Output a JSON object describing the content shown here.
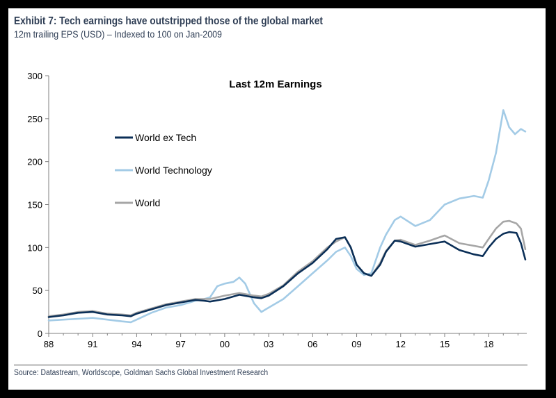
{
  "header": {
    "title": "Exhibit 7: Tech earnings have outstripped those of the global market",
    "subtitle": "12m trailing EPS (USD) – Indexed to 100 on Jan-2009"
  },
  "footer": {
    "source": "Source: Datastream, Worldscope, Goldman Sachs Global Investment Research"
  },
  "chart_data": {
    "type": "line",
    "title": "Last 12m Earnings",
    "xlabel": "",
    "ylabel": "",
    "x_tick_labels": [
      "88",
      "91",
      "94",
      "97",
      "00",
      "03",
      "06",
      "09",
      "12",
      "15",
      "18"
    ],
    "x_tick_years": [
      1988,
      1991,
      1994,
      1997,
      2000,
      2003,
      2006,
      2009,
      2012,
      2015,
      2018
    ],
    "xlim": [
      1988,
      2020.6
    ],
    "ylim": [
      0,
      300
    ],
    "y_ticks": [
      0,
      50,
      100,
      150,
      200,
      250,
      300
    ],
    "grid": false,
    "legend": "left",
    "series": [
      {
        "name": "World ex Tech",
        "color": "#0b2f57",
        "x": [
          1988,
          1989,
          1990,
          1991,
          1992,
          1993,
          1993.6,
          1994,
          1995,
          1996,
          1997,
          1998,
          1998.6,
          1999,
          2000,
          2001,
          2002,
          2002.5,
          2003,
          2004,
          2005,
          2006,
          2007,
          2007.6,
          2008.2,
          2008.6,
          2009,
          2009.5,
          2010,
          2010.6,
          2011,
          2011.6,
          2012,
          2013,
          2014,
          2015,
          2016,
          2017,
          2017.6,
          2018,
          2018.5,
          2019,
          2019.4,
          2019.9,
          2020.2,
          2020.5
        ],
        "y": [
          19,
          21,
          24,
          25,
          22,
          21,
          20,
          23,
          28,
          33,
          36,
          39,
          38,
          37,
          40,
          45,
          42,
          41,
          44,
          55,
          70,
          82,
          98,
          110,
          112,
          100,
          80,
          70,
          67,
          80,
          95,
          108,
          107,
          101,
          104,
          107,
          97,
          92,
          90,
          100,
          110,
          116,
          118,
          117,
          105,
          86
        ]
      },
      {
        "name": "World Technology",
        "color": "#a3cbe6",
        "x": [
          1988,
          1989,
          1990,
          1991,
          1992,
          1993,
          1993.6,
          1994,
          1995,
          1996,
          1997,
          1998,
          1998.6,
          1999,
          1999.5,
          2000,
          2000.6,
          2001,
          2001.4,
          2002,
          2002.5,
          2003,
          2004,
          2005,
          2006,
          2007,
          2007.6,
          2008.2,
          2008.6,
          2009,
          2009.5,
          2010,
          2010.6,
          2011,
          2011.6,
          2012,
          2013,
          2014,
          2015,
          2016,
          2017,
          2017.6,
          2018,
          2018.5,
          2019,
          2019.4,
          2019.8,
          2020.2,
          2020.5
        ],
        "y": [
          15,
          16,
          17,
          18,
          16,
          14,
          13,
          16,
          24,
          30,
          33,
          38,
          40,
          42,
          55,
          58,
          60,
          65,
          58,
          35,
          25,
          30,
          40,
          55,
          70,
          85,
          95,
          100,
          90,
          75,
          68,
          70,
          100,
          115,
          132,
          136,
          125,
          132,
          150,
          157,
          160,
          158,
          178,
          210,
          260,
          240,
          232,
          238,
          235
        ]
      },
      {
        "name": "World",
        "color": "#a6a6a6",
        "x": [
          1988,
          1989,
          1990,
          1991,
          1992,
          1993,
          1993.6,
          1994,
          1995,
          1996,
          1997,
          1998,
          1998.6,
          1999,
          2000,
          2001,
          2002,
          2002.5,
          2003,
          2004,
          2005,
          2006,
          2007,
          2007.6,
          2008.2,
          2008.6,
          2009,
          2009.5,
          2010,
          2010.6,
          2011,
          2011.6,
          2012,
          2013,
          2014,
          2015,
          2016,
          2017,
          2017.6,
          2018,
          2018.5,
          2019,
          2019.4,
          2019.9,
          2020.2,
          2020.5
        ],
        "y": [
          20,
          22,
          25,
          26,
          23,
          22,
          21,
          24,
          29,
          34,
          37,
          40,
          40,
          40,
          44,
          47,
          44,
          43,
          46,
          56,
          72,
          84,
          100,
          107,
          112,
          100,
          80,
          70,
          67,
          82,
          96,
          108,
          109,
          103,
          108,
          114,
          105,
          102,
          100,
          110,
          122,
          130,
          131,
          128,
          122,
          98
        ]
      }
    ]
  }
}
